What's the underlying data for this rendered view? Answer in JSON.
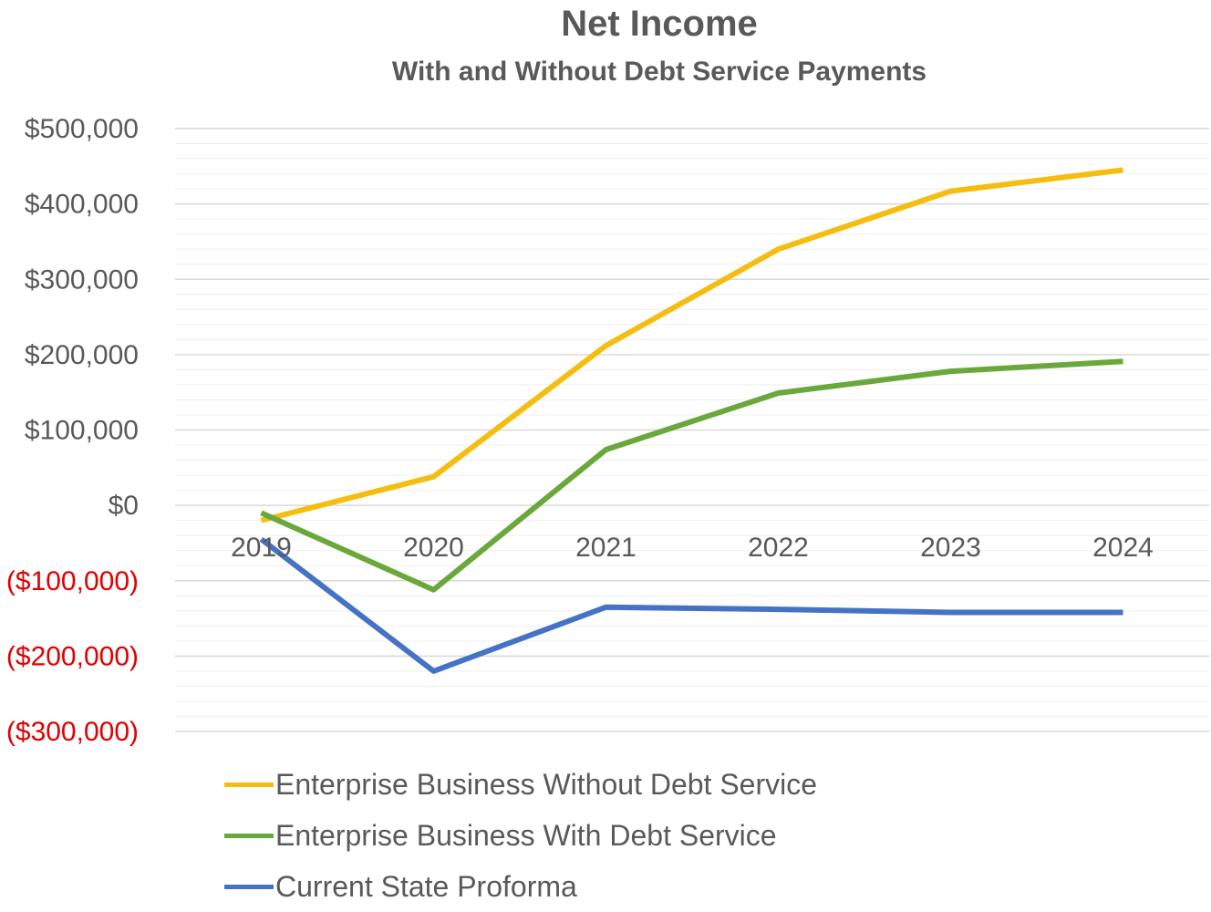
{
  "colors": {
    "text": "#595959",
    "negative": "#e00000",
    "gridMajor": "#d9d9d9",
    "gridMinor": "#efefef"
  },
  "chart_data": {
    "type": "line",
    "title": "Net Income",
    "subtitle": "With and Without Debt Service Payments",
    "xlabel": "",
    "ylabel": "",
    "categories": [
      "2019",
      "2020",
      "2021",
      "2022",
      "2023",
      "2024"
    ],
    "ylim": [
      -300000,
      500000
    ],
    "yticks": [
      500000,
      400000,
      300000,
      200000,
      100000,
      0,
      -100000,
      -200000,
      -300000
    ],
    "ytick_labels": [
      "$500,000",
      "$400,000",
      "$300,000",
      "$200,000",
      "$100,000",
      "$0",
      "($100,000)",
      "($200,000)",
      "($300,000)"
    ],
    "minor_gridlines": true,
    "legend_position": "bottom",
    "series": [
      {
        "name": "Enterprise Business Without Debt Service",
        "color": "#f5bd0f",
        "values": [
          -20000,
          38000,
          212000,
          340000,
          417000,
          445000
        ]
      },
      {
        "name": "Enterprise Business With Debt Service",
        "color": "#6aa83b",
        "values": [
          -10000,
          -112000,
          74000,
          149000,
          178000,
          191000
        ]
      },
      {
        "name": "Current State Proforma",
        "color": "#4472c4",
        "values": [
          -45000,
          -220000,
          -135000,
          -138000,
          -142000,
          -142000
        ]
      }
    ]
  }
}
